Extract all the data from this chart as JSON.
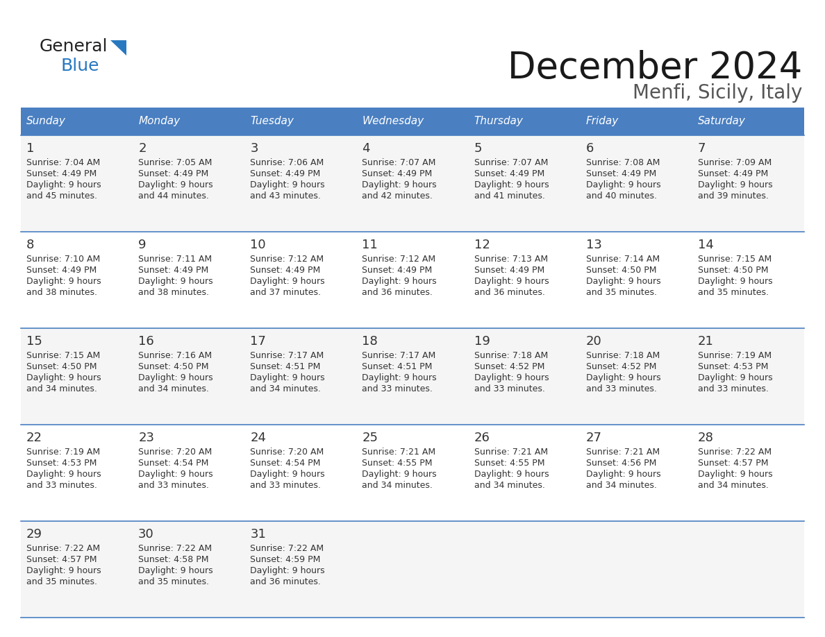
{
  "title": "December 2024",
  "subtitle": "Menfi, Sicily, Italy",
  "header_color": "#4A7FC1",
  "header_text_color": "#FFFFFF",
  "background_color": "#FFFFFF",
  "days_of_week": [
    "Sunday",
    "Monday",
    "Tuesday",
    "Wednesday",
    "Thursday",
    "Friday",
    "Saturday"
  ],
  "weeks": [
    [
      {
        "day": "1",
        "sunrise": "7:04 AM",
        "sunset": "4:49 PM",
        "dl_hours": "9 hours",
        "dl_mins": "45 minutes."
      },
      {
        "day": "2",
        "sunrise": "7:05 AM",
        "sunset": "4:49 PM",
        "dl_hours": "9 hours",
        "dl_mins": "44 minutes."
      },
      {
        "day": "3",
        "sunrise": "7:06 AM",
        "sunset": "4:49 PM",
        "dl_hours": "9 hours",
        "dl_mins": "43 minutes."
      },
      {
        "day": "4",
        "sunrise": "7:07 AM",
        "sunset": "4:49 PM",
        "dl_hours": "9 hours",
        "dl_mins": "42 minutes."
      },
      {
        "day": "5",
        "sunrise": "7:07 AM",
        "sunset": "4:49 PM",
        "dl_hours": "9 hours",
        "dl_mins": "41 minutes."
      },
      {
        "day": "6",
        "sunrise": "7:08 AM",
        "sunset": "4:49 PM",
        "dl_hours": "9 hours",
        "dl_mins": "40 minutes."
      },
      {
        "day": "7",
        "sunrise": "7:09 AM",
        "sunset": "4:49 PM",
        "dl_hours": "9 hours",
        "dl_mins": "39 minutes."
      }
    ],
    [
      {
        "day": "8",
        "sunrise": "7:10 AM",
        "sunset": "4:49 PM",
        "dl_hours": "9 hours",
        "dl_mins": "38 minutes."
      },
      {
        "day": "9",
        "sunrise": "7:11 AM",
        "sunset": "4:49 PM",
        "dl_hours": "9 hours",
        "dl_mins": "38 minutes."
      },
      {
        "day": "10",
        "sunrise": "7:12 AM",
        "sunset": "4:49 PM",
        "dl_hours": "9 hours",
        "dl_mins": "37 minutes."
      },
      {
        "day": "11",
        "sunrise": "7:12 AM",
        "sunset": "4:49 PM",
        "dl_hours": "9 hours",
        "dl_mins": "36 minutes."
      },
      {
        "day": "12",
        "sunrise": "7:13 AM",
        "sunset": "4:49 PM",
        "dl_hours": "9 hours",
        "dl_mins": "36 minutes."
      },
      {
        "day": "13",
        "sunrise": "7:14 AM",
        "sunset": "4:50 PM",
        "dl_hours": "9 hours",
        "dl_mins": "35 minutes."
      },
      {
        "day": "14",
        "sunrise": "7:15 AM",
        "sunset": "4:50 PM",
        "dl_hours": "9 hours",
        "dl_mins": "35 minutes."
      }
    ],
    [
      {
        "day": "15",
        "sunrise": "7:15 AM",
        "sunset": "4:50 PM",
        "dl_hours": "9 hours",
        "dl_mins": "34 minutes."
      },
      {
        "day": "16",
        "sunrise": "7:16 AM",
        "sunset": "4:50 PM",
        "dl_hours": "9 hours",
        "dl_mins": "34 minutes."
      },
      {
        "day": "17",
        "sunrise": "7:17 AM",
        "sunset": "4:51 PM",
        "dl_hours": "9 hours",
        "dl_mins": "34 minutes."
      },
      {
        "day": "18",
        "sunrise": "7:17 AM",
        "sunset": "4:51 PM",
        "dl_hours": "9 hours",
        "dl_mins": "33 minutes."
      },
      {
        "day": "19",
        "sunrise": "7:18 AM",
        "sunset": "4:52 PM",
        "dl_hours": "9 hours",
        "dl_mins": "33 minutes."
      },
      {
        "day": "20",
        "sunrise": "7:18 AM",
        "sunset": "4:52 PM",
        "dl_hours": "9 hours",
        "dl_mins": "33 minutes."
      },
      {
        "day": "21",
        "sunrise": "7:19 AM",
        "sunset": "4:53 PM",
        "dl_hours": "9 hours",
        "dl_mins": "33 minutes."
      }
    ],
    [
      {
        "day": "22",
        "sunrise": "7:19 AM",
        "sunset": "4:53 PM",
        "dl_hours": "9 hours",
        "dl_mins": "33 minutes."
      },
      {
        "day": "23",
        "sunrise": "7:20 AM",
        "sunset": "4:54 PM",
        "dl_hours": "9 hours",
        "dl_mins": "33 minutes."
      },
      {
        "day": "24",
        "sunrise": "7:20 AM",
        "sunset": "4:54 PM",
        "dl_hours": "9 hours",
        "dl_mins": "33 minutes."
      },
      {
        "day": "25",
        "sunrise": "7:21 AM",
        "sunset": "4:55 PM",
        "dl_hours": "9 hours",
        "dl_mins": "34 minutes."
      },
      {
        "day": "26",
        "sunrise": "7:21 AM",
        "sunset": "4:55 PM",
        "dl_hours": "9 hours",
        "dl_mins": "34 minutes."
      },
      {
        "day": "27",
        "sunrise": "7:21 AM",
        "sunset": "4:56 PM",
        "dl_hours": "9 hours",
        "dl_mins": "34 minutes."
      },
      {
        "day": "28",
        "sunrise": "7:22 AM",
        "sunset": "4:57 PM",
        "dl_hours": "9 hours",
        "dl_mins": "34 minutes."
      }
    ],
    [
      {
        "day": "29",
        "sunrise": "7:22 AM",
        "sunset": "4:57 PM",
        "dl_hours": "9 hours",
        "dl_mins": "35 minutes."
      },
      {
        "day": "30",
        "sunrise": "7:22 AM",
        "sunset": "4:58 PM",
        "dl_hours": "9 hours",
        "dl_mins": "35 minutes."
      },
      {
        "day": "31",
        "sunrise": "7:22 AM",
        "sunset": "4:59 PM",
        "dl_hours": "9 hours",
        "dl_mins": "36 minutes."
      },
      null,
      null,
      null,
      null
    ]
  ],
  "title_fontsize": 38,
  "subtitle_fontsize": 20,
  "dayname_fontsize": 11,
  "daynum_fontsize": 13,
  "info_fontsize": 9,
  "line_color": "#4A7FC1",
  "text_color": "#333333",
  "logo_general_color": "#222222",
  "logo_blue_color": "#2878C0",
  "logo_triangle_color": "#2878C0"
}
